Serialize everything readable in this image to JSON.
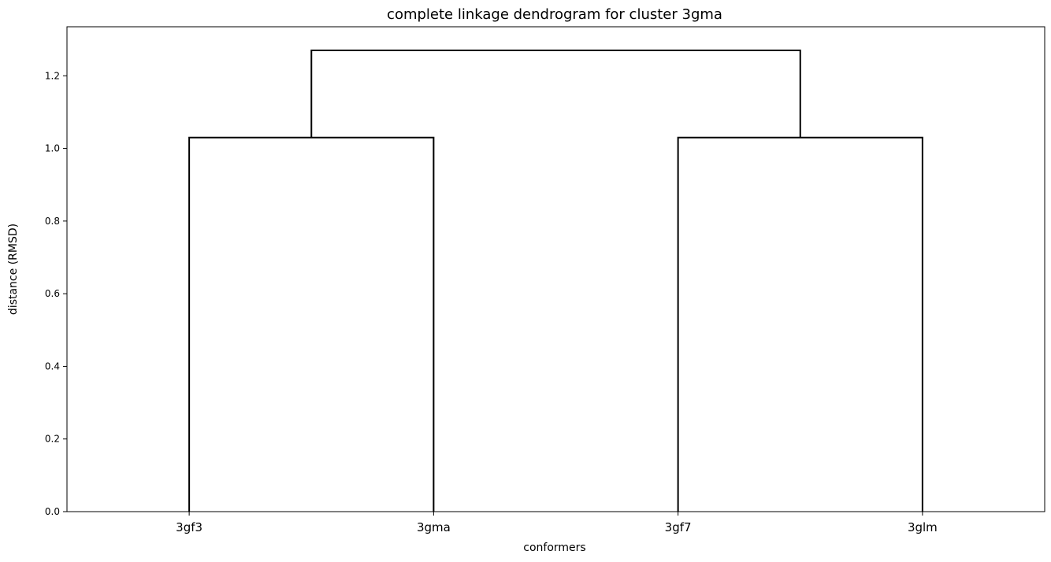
{
  "chart_data": {
    "type": "dendrogram",
    "title": "complete linkage dendrogram for cluster 3gma",
    "xlabel": "conformers",
    "ylabel": "distance (RMSD)",
    "leaves": [
      "3gf3",
      "3gma",
      "3gf7",
      "3glm"
    ],
    "merges": [
      {
        "left": "3gf3",
        "right": "3gma",
        "height": 1.03
      },
      {
        "left": "3gf7",
        "right": "3glm",
        "height": 1.03
      },
      {
        "left": "3gf3+3gma",
        "right": "3gf7+3glm",
        "height": 1.27
      }
    ],
    "ylim": [
      0,
      1.335
    ],
    "yticks": [
      "0.0",
      "0.2",
      "0.4",
      "0.6",
      "0.8",
      "1.0",
      "1.2"
    ],
    "grid": false,
    "line_color": "#000000"
  }
}
